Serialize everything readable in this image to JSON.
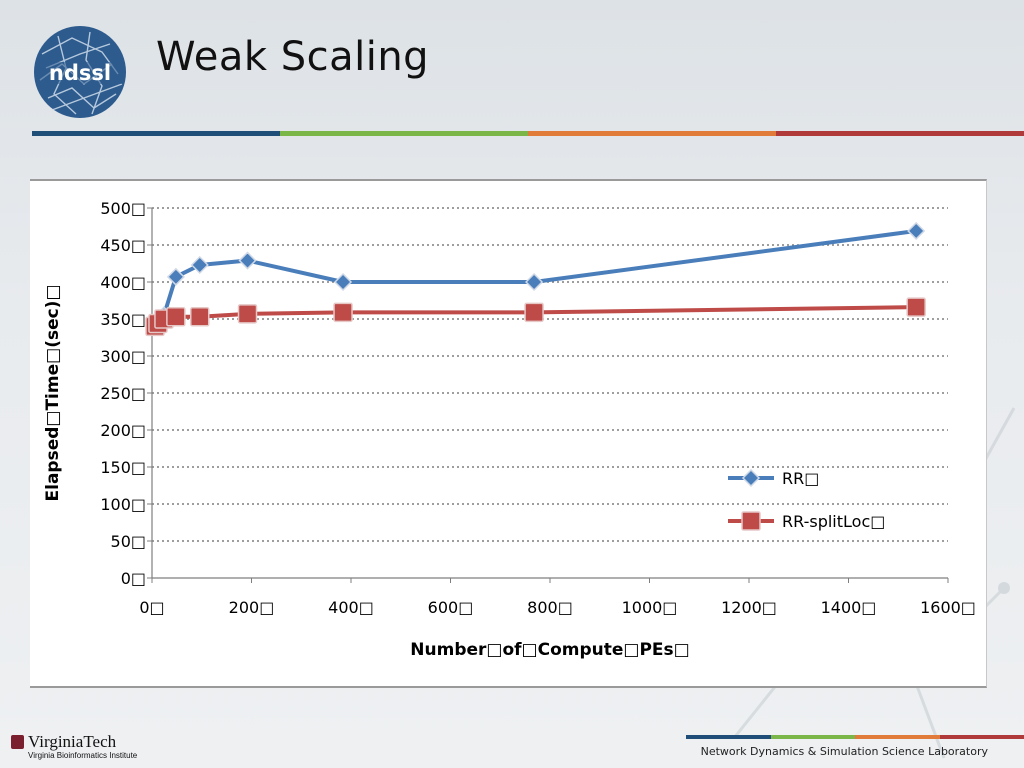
{
  "slide": {
    "title": "Weak Scaling",
    "logo_text": "ndssl",
    "footer_lab": "Network Dynamics & Simulation Science Laboratory",
    "footer_institution": "VirginiaTech",
    "footer_institute": "Virginia Bioinformatics Institute",
    "rule_colors": [
      "#1f4e79",
      "#7ab648",
      "#e07b39",
      "#b03a3a"
    ]
  },
  "chart_data": {
    "type": "line",
    "xlabel": "Number□of□Compute□PEs□",
    "ylabel": "Elapsed□Time□(sec)□",
    "xlim": [
      0,
      1600
    ],
    "ylim": [
      0,
      500
    ],
    "x_ticks": [
      0,
      200,
      400,
      600,
      800,
      1000,
      1200,
      1400,
      1600
    ],
    "y_ticks": [
      0,
      50,
      100,
      150,
      200,
      250,
      300,
      350,
      400,
      450,
      500
    ],
    "tick_suffix": "□",
    "grid": "horizontal-dotted",
    "legend_position": "right",
    "series": [
      {
        "name": "RR□",
        "color": "#4a7ebb",
        "marker": "diamond",
        "x": [
          12,
          24,
          48,
          96,
          192,
          384,
          768,
          1536
        ],
        "y": [
          348,
          355,
          407,
          423,
          429,
          400,
          400,
          469
        ]
      },
      {
        "name": "RR-splitLoc□",
        "color": "#be4b48",
        "marker": "square",
        "x": [
          6,
          12,
          24,
          48,
          96,
          192,
          384,
          768,
          1536
        ],
        "y": [
          340,
          344,
          350,
          353,
          353,
          357,
          359,
          359,
          366
        ]
      }
    ]
  }
}
